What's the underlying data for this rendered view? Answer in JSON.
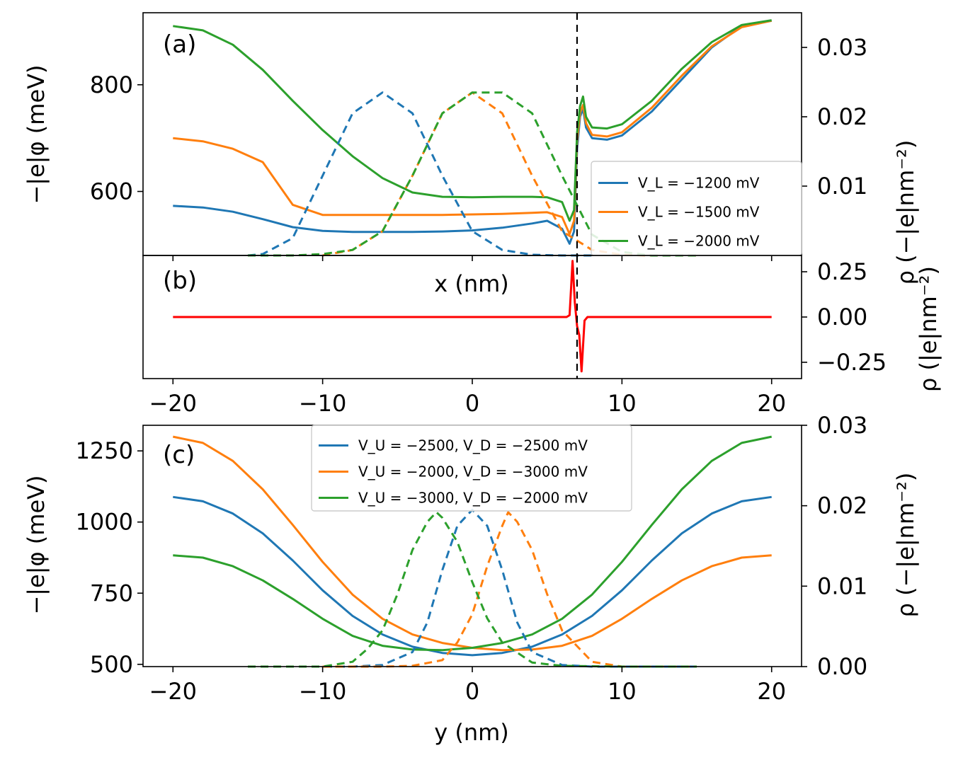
{
  "chart_data": [
    {
      "type": "line",
      "panel_label": "(a)",
      "xlim": [
        -22,
        22
      ],
      "ylabel": "−|e|φ (meV)",
      "ylim": [
        480,
        935
      ],
      "yticks": [
        600,
        800
      ],
      "y2label": "ρ (−|e|nm⁻²)",
      "y2lim": [
        0,
        0.035
      ],
      "y2ticks": [
        0.01,
        0.02,
        0.03
      ],
      "vline_x": 7,
      "legend_position": "lower-right",
      "colors": [
        "#1f77b4",
        "#ff7f0e",
        "#2ca02c"
      ],
      "series": [
        {
          "name": "V_L = −1200 mV",
          "axis": "left",
          "style": "solid",
          "x": [
            -20,
            -18,
            -16,
            -14,
            -12,
            -10,
            -8,
            -6,
            -4,
            -2,
            0,
            2,
            4,
            5,
            6,
            6.5,
            6.8,
            7.0,
            7.2,
            7.4,
            7.6,
            8,
            9,
            10,
            12,
            14,
            16,
            18,
            20
          ],
          "y": [
            573,
            570,
            562,
            548,
            533,
            526,
            524,
            524,
            524,
            525,
            527,
            532,
            540,
            545,
            530,
            502,
            525,
            680,
            740,
            755,
            720,
            700,
            697,
            705,
            750,
            810,
            870,
            910,
            920
          ]
        },
        {
          "name": "V_L = −1500 mV",
          "axis": "left",
          "style": "solid",
          "x": [
            -20,
            -18,
            -16,
            -14,
            -12,
            -10,
            -8,
            -6,
            -4,
            -2,
            0,
            2,
            4,
            5,
            6,
            6.5,
            6.8,
            7.0,
            7.2,
            7.4,
            7.6,
            8,
            9,
            10,
            12,
            14,
            16,
            18,
            20
          ],
          "y": [
            700,
            694,
            680,
            655,
            575,
            556,
            556,
            556,
            556,
            556,
            557,
            558,
            560,
            561,
            552,
            520,
            545,
            695,
            748,
            762,
            728,
            706,
            703,
            711,
            757,
            817,
            872,
            908,
            920
          ]
        },
        {
          "name": "V_L = −2000 mV",
          "axis": "left",
          "style": "solid",
          "x": [
            -20,
            -18,
            -16,
            -14,
            -12,
            -10,
            -8,
            -6,
            -4,
            -2,
            0,
            2,
            4,
            5,
            6,
            6.5,
            6.8,
            7.0,
            7.2,
            7.4,
            7.6,
            8,
            9,
            10,
            12,
            14,
            16,
            18,
            20
          ],
          "y": [
            910,
            902,
            875,
            828,
            770,
            715,
            666,
            625,
            598,
            590,
            589,
            590,
            590,
            589,
            580,
            545,
            565,
            710,
            760,
            778,
            740,
            720,
            718,
            726,
            770,
            830,
            880,
            912,
            921
          ]
        },
        {
          "name": "V_L = −1200 mV ρ",
          "axis": "right",
          "style": "dashed",
          "color_index": 0,
          "x": [
            -15,
            -14,
            -12,
            -10,
            -8,
            -6,
            -4,
            -2,
            0,
            2,
            4,
            6,
            8
          ],
          "y": [
            0.0,
            0.0002,
            0.0025,
            0.0115,
            0.0205,
            0.0235,
            0.0205,
            0.0115,
            0.0035,
            0.0008,
            0.0001,
            0.0,
            0.0
          ]
        },
        {
          "name": "V_L = −1500 mV ρ",
          "axis": "right",
          "style": "dashed",
          "color_index": 1,
          "x": [
            -10,
            -8,
            -6,
            -4,
            -2,
            0,
            2,
            4,
            6,
            8,
            10,
            12,
            15
          ],
          "y": [
            0.0,
            0.0008,
            0.0035,
            0.0115,
            0.0205,
            0.0235,
            0.0205,
            0.0115,
            0.0035,
            0.0008,
            0.0001,
            0.0,
            0.0
          ]
        },
        {
          "name": "V_L = −2000 mV ρ",
          "axis": "right",
          "style": "dashed",
          "color_index": 2,
          "x": [
            -15,
            -12,
            -10,
            -8,
            -6,
            -4,
            -2,
            0,
            2,
            4,
            6,
            8,
            10,
            12,
            15
          ],
          "y": [
            0.0,
            0.0,
            0.0002,
            0.0008,
            0.0035,
            0.0115,
            0.0205,
            0.0235,
            0.0235,
            0.0205,
            0.0115,
            0.003,
            0.0005,
            0.0,
            0.0
          ]
        }
      ]
    },
    {
      "type": "line",
      "panel_label": "(b)",
      "xlabel": "x (nm)",
      "xlim": [
        -22,
        22
      ],
      "xticks": [
        -20,
        -10,
        0,
        10,
        20
      ],
      "xticklabels": [
        "−20",
        "−10",
        "0",
        "10",
        "20"
      ],
      "y2label": "ρ (|e|nm⁻²)",
      "y2lim": [
        -0.34,
        0.34
      ],
      "y2ticks": [
        -0.25,
        0,
        0.25
      ],
      "y2ticklabels": [
        "−0.25",
        "0.00",
        "0.25"
      ],
      "vline_x": 7,
      "series": [
        {
          "name": "",
          "color": "#ff0000",
          "x": [
            -20,
            6.3,
            6.5,
            6.7,
            6.85,
            7.0,
            7.15,
            7.3,
            7.5,
            7.7,
            20
          ],
          "y": [
            0,
            0,
            0.01,
            0.31,
            0.08,
            -0.05,
            -0.1,
            -0.3,
            -0.02,
            0,
            0
          ]
        }
      ]
    },
    {
      "type": "line",
      "panel_label": "(c)",
      "xlabel": "y (nm)",
      "xlim": [
        -22,
        22
      ],
      "xticks": [
        -20,
        -10,
        0,
        10,
        20
      ],
      "xticklabels": [
        "−20",
        "−10",
        "0",
        "10",
        "20"
      ],
      "ylabel": "−|e|φ (meV)",
      "ylim": [
        492,
        1340
      ],
      "yticks": [
        500,
        750,
        1000,
        1250
      ],
      "y2label": "ρ (−|e|nm⁻²)",
      "y2lim": [
        0,
        0.03
      ],
      "y2ticks": [
        0,
        0.01,
        0.02,
        0.03
      ],
      "y2ticklabels": [
        "0.00",
        "0.01",
        "0.02",
        "0.03"
      ],
      "legend_position": "upper-center",
      "colors": [
        "#1f77b4",
        "#ff7f0e",
        "#2ca02c"
      ],
      "series": [
        {
          "name": "V_U = −2500, V_D = −2500 mV",
          "axis": "left",
          "style": "solid",
          "x": [
            -20,
            -18,
            -16,
            -14,
            -12,
            -10,
            -8,
            -6,
            -4,
            -2,
            0,
            2,
            4,
            6,
            8,
            10,
            12,
            14,
            16,
            18,
            20
          ],
          "y": [
            1088,
            1073,
            1030,
            960,
            865,
            760,
            670,
            605,
            562,
            540,
            532,
            540,
            562,
            605,
            670,
            760,
            865,
            960,
            1030,
            1073,
            1088
          ]
        },
        {
          "name": "V_U = −2000, V_D = −3000 mV",
          "axis": "left",
          "style": "solid",
          "x": [
            -20,
            -18,
            -16,
            -14,
            -12,
            -10,
            -8,
            -6,
            -4,
            -2,
            0,
            2,
            4,
            6,
            8,
            10,
            12,
            14,
            16,
            18,
            20
          ],
          "y": [
            1300,
            1278,
            1215,
            1115,
            990,
            860,
            745,
            660,
            605,
            575,
            558,
            550,
            552,
            565,
            600,
            660,
            730,
            795,
            845,
            875,
            883
          ]
        },
        {
          "name": "V_U = −3000, V_D = −2000 mV",
          "axis": "left",
          "style": "solid",
          "x": [
            -20,
            -18,
            -16,
            -14,
            -12,
            -10,
            -8,
            -6,
            -4,
            -2,
            0,
            2,
            4,
            6,
            8,
            10,
            12,
            14,
            16,
            18,
            20
          ],
          "y": [
            883,
            875,
            845,
            795,
            730,
            660,
            600,
            565,
            552,
            550,
            558,
            575,
            605,
            660,
            745,
            860,
            990,
            1115,
            1215,
            1278,
            1300
          ]
        },
        {
          "name": "blue ρ",
          "axis": "right",
          "style": "dashed",
          "color_index": 0,
          "x": [
            -15,
            -8,
            -6,
            -4,
            -3,
            -2,
            -1,
            0,
            1,
            2,
            3,
            4,
            6,
            8,
            15
          ],
          "y": [
            0,
            0,
            0.0002,
            0.0018,
            0.0055,
            0.012,
            0.0175,
            0.0195,
            0.0175,
            0.012,
            0.0055,
            0.0018,
            0.0002,
            0,
            0
          ]
        },
        {
          "name": "orange ρ",
          "axis": "right",
          "style": "dashed",
          "color_index": 1,
          "x": [
            -10,
            -6,
            -4,
            -2,
            -1,
            0,
            1,
            2,
            2.4,
            3,
            4,
            5,
            6,
            8,
            10,
            12,
            15
          ],
          "y": [
            0,
            0,
            0.0001,
            0.0008,
            0.003,
            0.0065,
            0.0125,
            0.0175,
            0.0192,
            0.018,
            0.0145,
            0.009,
            0.0045,
            0.0006,
            0,
            0,
            0
          ]
        },
        {
          "name": "green ρ",
          "axis": "right",
          "style": "dashed",
          "color_index": 2,
          "x": [
            -15,
            -12,
            -10,
            -8,
            -7,
            -6,
            -5,
            -4,
            -3,
            -2.4,
            -2,
            -1,
            0,
            1,
            2,
            4,
            6,
            10,
            15
          ],
          "y": [
            0,
            0,
            0,
            0.0006,
            0.0022,
            0.0045,
            0.009,
            0.0145,
            0.018,
            0.0192,
            0.0185,
            0.0155,
            0.0105,
            0.006,
            0.003,
            0.0005,
            0.0001,
            0,
            0
          ]
        }
      ]
    }
  ]
}
